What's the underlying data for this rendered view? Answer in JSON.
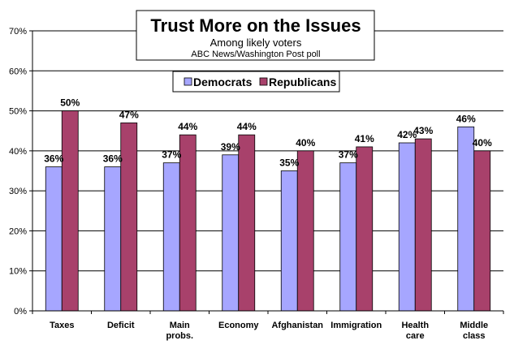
{
  "chart_data": {
    "type": "bar",
    "title": "Trust More on the Issues",
    "subtitle": "Among likely voters",
    "source": "ABC News/Washington Post poll",
    "categories": [
      [
        "Taxes"
      ],
      [
        "Deficit"
      ],
      [
        "Main",
        "probs."
      ],
      [
        "Economy"
      ],
      [
        "Afghanistan"
      ],
      [
        "Immigration"
      ],
      [
        "Health",
        "care"
      ],
      [
        "Middle",
        "class"
      ]
    ],
    "series": [
      {
        "name": "Democrats",
        "color": "#a6a6ff",
        "values": [
          36,
          36,
          37,
          39,
          35,
          37,
          42,
          46
        ]
      },
      {
        "name": "Republicans",
        "color": "#a8416b",
        "values": [
          50,
          47,
          44,
          44,
          40,
          41,
          43,
          40
        ]
      }
    ],
    "value_suffix": "%",
    "yticks": [
      "0%",
      "10%",
      "20%",
      "30%",
      "40%",
      "50%",
      "60%",
      "70%"
    ],
    "ylim": [
      0,
      70
    ],
    "grid": true,
    "legend_position": "top-center"
  }
}
